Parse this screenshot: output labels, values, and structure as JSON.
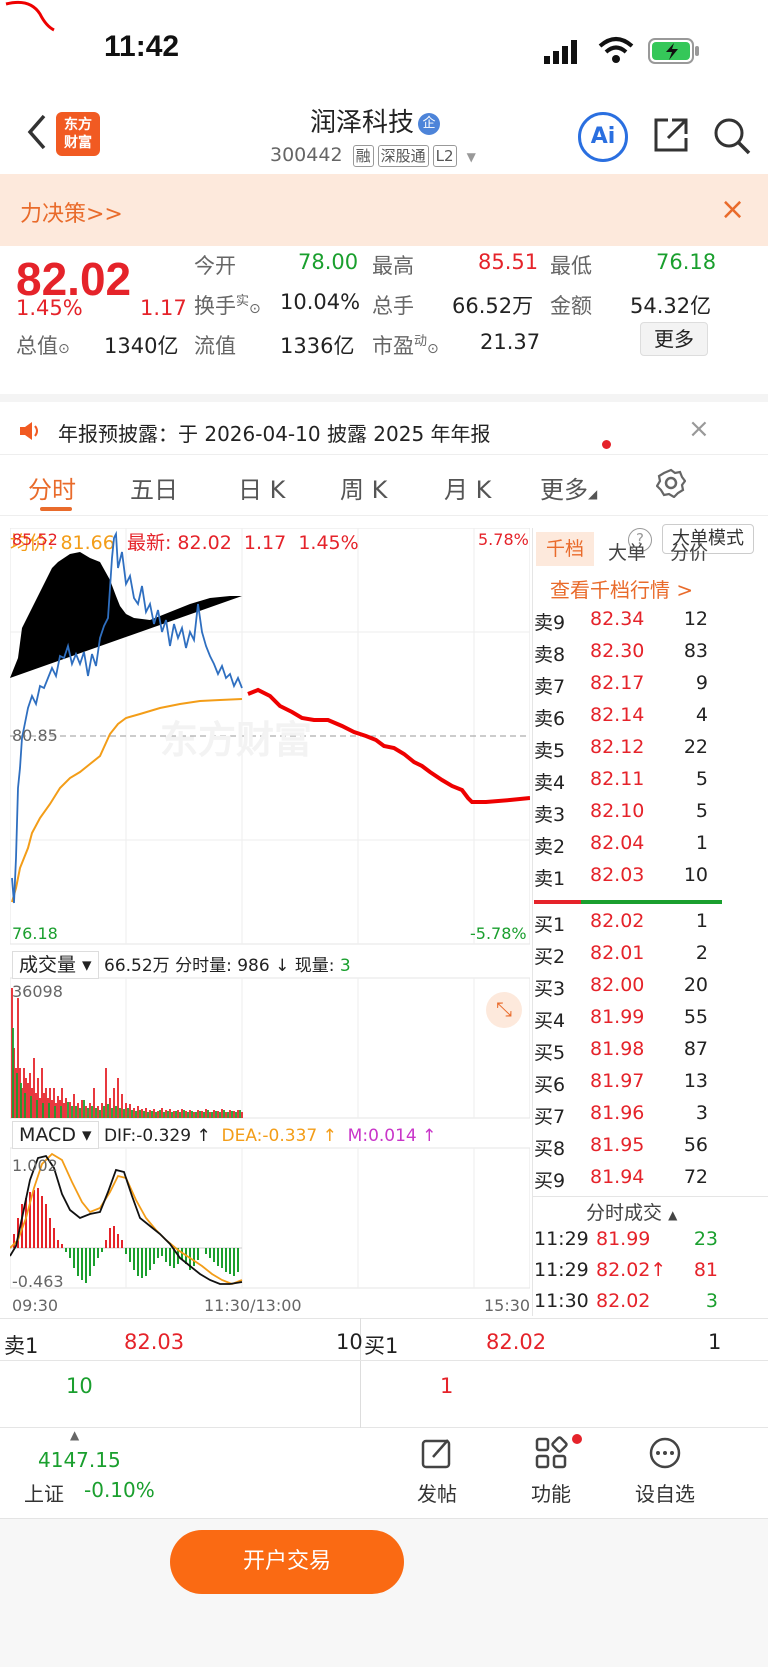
{
  "status": {
    "time": "11:42"
  },
  "header": {
    "logo_line1": "东方",
    "logo_line2": "财富",
    "stock_name": "润泽科技",
    "name_tag": "企",
    "code": "300442",
    "badges": [
      "融",
      "深股通",
      "L2"
    ],
    "ai_label": "Ai"
  },
  "banner": {
    "text": "力决策>>",
    "close": "×"
  },
  "quote": {
    "price": "82.02",
    "change_pct": "1.45%",
    "change": "1.17",
    "open_label": "今开",
    "open": "78.00",
    "high_label": "最高",
    "high": "85.51",
    "low_label": "最低",
    "low": "76.18",
    "turnover_label": "换手",
    "turnover_sup": "实",
    "turnover": "10.04%",
    "volume_label": "总手",
    "volume": "66.52万",
    "amount_label": "金额",
    "amount": "54.32亿",
    "mcap_label": "总值",
    "mcap": "1340亿",
    "float_label": "流值",
    "float": "1336亿",
    "pe_label": "市盈",
    "pe_sup": "动",
    "pe": "21.37",
    "more": "更多"
  },
  "notice": {
    "text": "年报预披露：于 2026-04-10 披露 2025 年年报",
    "close": "×"
  },
  "tabs": [
    "分时",
    "五日",
    "日 K",
    "周 K",
    "月 K",
    "更多"
  ],
  "intraday": {
    "avg_label": "均价:",
    "avg": "81.66",
    "latest_label": "最新:",
    "latest": "82.02",
    "chg": "1.17",
    "chg_pct": "1.45%",
    "big_order_mode": "大单模式",
    "help": "?",
    "y_top": "85.52",
    "y_mid": "80.85",
    "y_bot": "76.18",
    "pct_top": "5.78%",
    "pct_bot": "-5.78%",
    "watermark": "东方财富"
  },
  "volume": {
    "selector": "成交量",
    "total": "66.52万",
    "fenshi_label": "分时量:",
    "fenshi": "986 ↓",
    "now_label": "现量:",
    "now": "3",
    "max": "36098"
  },
  "macd": {
    "selector": "MACD",
    "dif": "DIF:-0.329 ↑",
    "dea": "DEA:-0.337 ↑",
    "m": "M:0.014 ↑",
    "top": "1.002",
    "bot": "-0.463"
  },
  "time_axis": {
    "start": "09:30",
    "mid": "11:30/13:00",
    "end": "15:30"
  },
  "orderbook": {
    "tabs": [
      "千档",
      "大单",
      "分价"
    ],
    "link": "查看千档行情 >",
    "asks": [
      {
        "label": "卖9",
        "price": "82.34",
        "vol": "12"
      },
      {
        "label": "卖8",
        "price": "82.30",
        "vol": "83"
      },
      {
        "label": "卖7",
        "price": "82.17",
        "vol": "9"
      },
      {
        "label": "卖6",
        "price": "82.14",
        "vol": "4"
      },
      {
        "label": "卖5",
        "price": "82.12",
        "vol": "22"
      },
      {
        "label": "卖4",
        "price": "82.11",
        "vol": "5"
      },
      {
        "label": "卖3",
        "price": "82.10",
        "vol": "5"
      },
      {
        "label": "卖2",
        "price": "82.04",
        "vol": "1"
      },
      {
        "label": "卖1",
        "price": "82.03",
        "vol": "10"
      }
    ],
    "bids": [
      {
        "label": "买1",
        "price": "82.02",
        "vol": "1"
      },
      {
        "label": "买2",
        "price": "82.01",
        "vol": "2"
      },
      {
        "label": "买3",
        "price": "82.00",
        "vol": "20"
      },
      {
        "label": "买4",
        "price": "81.99",
        "vol": "55"
      },
      {
        "label": "买5",
        "price": "81.98",
        "vol": "87"
      },
      {
        "label": "买6",
        "price": "81.97",
        "vol": "13"
      },
      {
        "label": "买7",
        "price": "81.96",
        "vol": "3"
      },
      {
        "label": "买8",
        "price": "81.95",
        "vol": "56"
      },
      {
        "label": "买9",
        "price": "81.94",
        "vol": "72"
      }
    ],
    "trades_title": "分时成交",
    "trades": [
      {
        "time": "11:29",
        "price": "81.99",
        "vol": "23"
      },
      {
        "time": "11:29",
        "price": "82.02↑",
        "vol": "81"
      },
      {
        "time": "11:30",
        "price": "82.02",
        "vol": "3"
      }
    ]
  },
  "level1": {
    "ask_label": "卖1",
    "ask_price": "82.03",
    "ask_vol": "10",
    "bid_label": "买1",
    "bid_price": "82.02",
    "bid_vol": "1",
    "ask_qty": "10",
    "bid_qty": "1"
  },
  "bottom": {
    "index_value": "4147.15",
    "index_name": "上证",
    "index_chg": "-0.10%",
    "trade": "开户交易",
    "post": "发帖",
    "func": "功能",
    "watch": "设自选"
  }
}
